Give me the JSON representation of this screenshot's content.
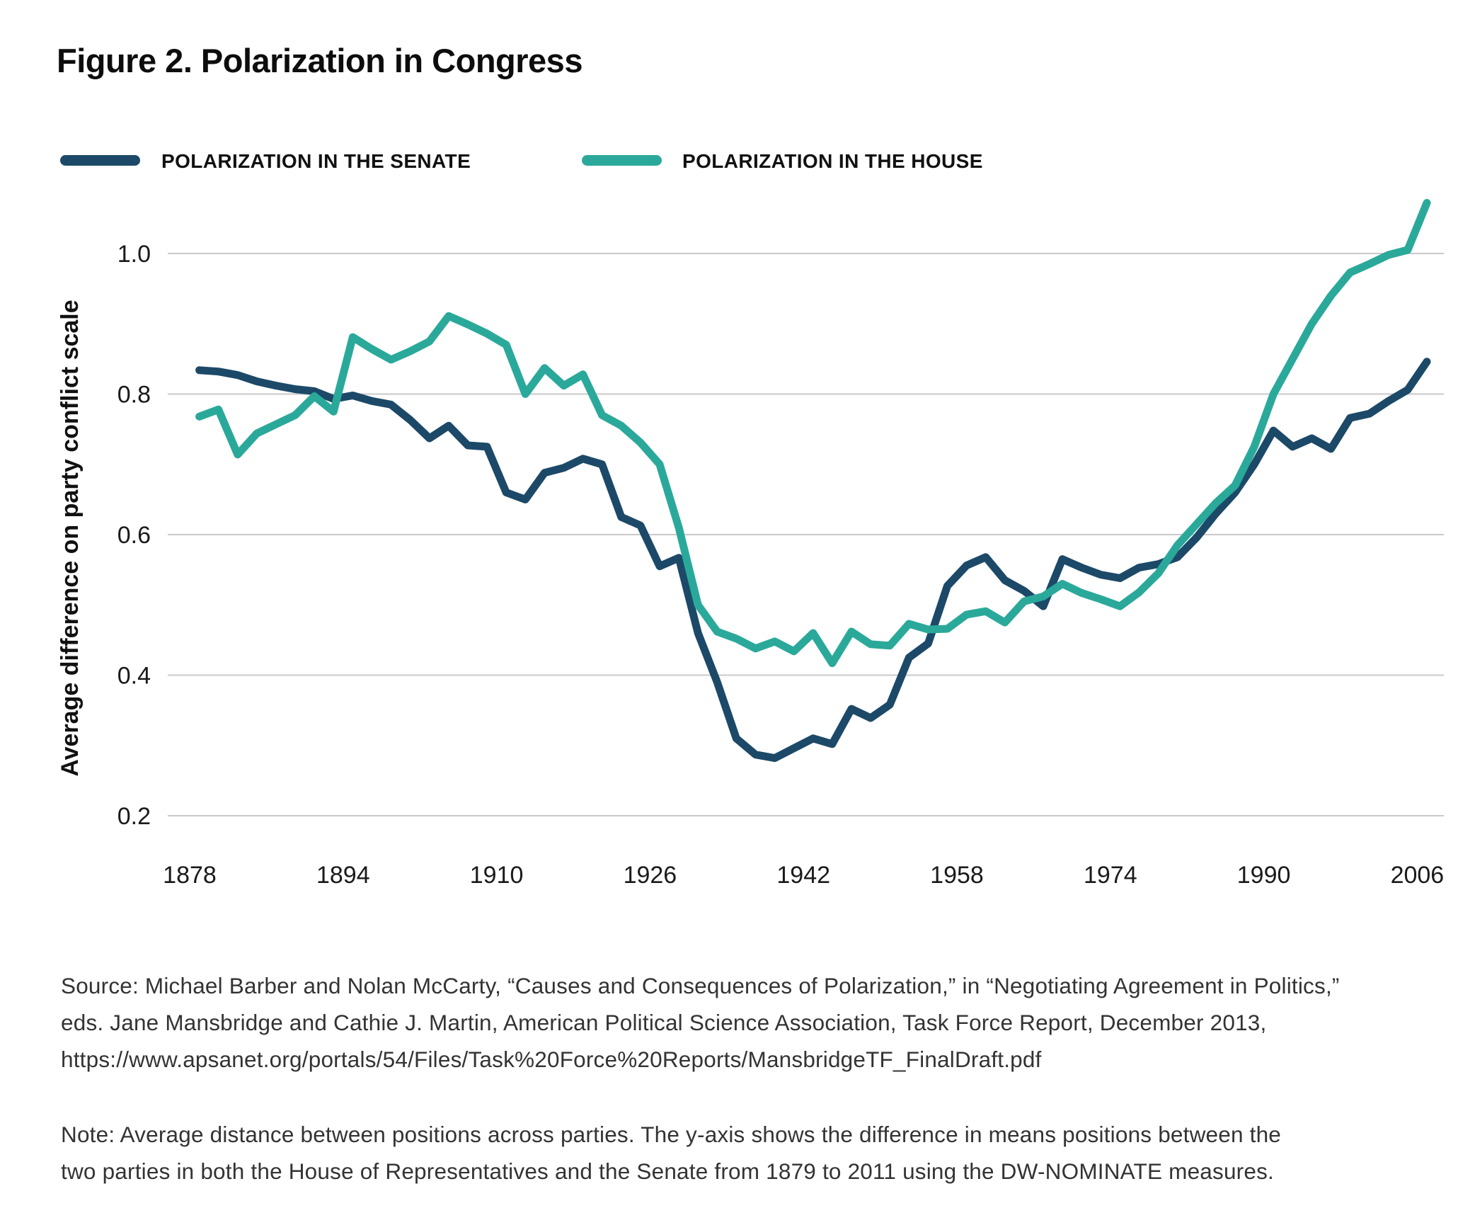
{
  "figure": {
    "title": "Figure 2. Polarization in Congress"
  },
  "legend": {
    "items": [
      {
        "id": "senate",
        "label": "POLARIZATION IN THE SENATE",
        "color": "#1c4968"
      },
      {
        "id": "house",
        "label": "POLARIZATION IN THE HOUSE",
        "color": "#2aa99b"
      }
    ]
  },
  "chart_data": {
    "type": "line",
    "title": "Figure 2. Polarization in Congress",
    "xlabel": "",
    "ylabel": "Average difference on party conflict scale",
    "xlim": [
      1878,
      2008
    ],
    "ylim": [
      0.15,
      1.1
    ],
    "grid": true,
    "legend_position": "top",
    "x_ticks": [
      1878,
      1894,
      1910,
      1926,
      1942,
      1958,
      1974,
      1990,
      2006
    ],
    "y_ticks": [
      {
        "value": 1.0,
        "label": "1.0"
      },
      {
        "value": 0.8,
        "label": "0.8"
      },
      {
        "value": 0.6,
        "label": "0.6"
      },
      {
        "value": 0.4,
        "label": "0.4"
      },
      {
        "value": 0.2,
        "label": "0.2"
      }
    ],
    "x": [
      1879,
      1881,
      1883,
      1885,
      1887,
      1889,
      1891,
      1893,
      1895,
      1897,
      1899,
      1901,
      1903,
      1905,
      1907,
      1909,
      1911,
      1913,
      1915,
      1917,
      1919,
      1921,
      1923,
      1925,
      1927,
      1929,
      1931,
      1933,
      1935,
      1937,
      1939,
      1941,
      1943,
      1945,
      1947,
      1949,
      1951,
      1953,
      1955,
      1957,
      1959,
      1961,
      1963,
      1965,
      1967,
      1969,
      1971,
      1973,
      1975,
      1977,
      1979,
      1981,
      1983,
      1985,
      1987,
      1989,
      1991,
      1993,
      1995,
      1997,
      1999,
      2001,
      2003,
      2005,
      2007
    ],
    "series": [
      {
        "id": "senate",
        "name": "POLARIZATION IN THE SENATE",
        "color": "#1c4968",
        "values": [
          0.834,
          0.832,
          0.827,
          0.818,
          0.812,
          0.807,
          0.804,
          0.793,
          0.798,
          0.79,
          0.785,
          0.763,
          0.737,
          0.755,
          0.727,
          0.725,
          0.66,
          0.65,
          0.688,
          0.695,
          0.708,
          0.7,
          0.625,
          0.613,
          0.555,
          0.567,
          0.46,
          0.39,
          0.31,
          0.287,
          0.282,
          0.296,
          0.31,
          0.302,
          0.352,
          0.339,
          0.358,
          0.425,
          0.445,
          0.527,
          0.556,
          0.568,
          0.535,
          0.52,
          0.498,
          0.565,
          0.553,
          0.543,
          0.538,
          0.553,
          0.558,
          0.568,
          0.596,
          0.63,
          0.66,
          0.7,
          0.748,
          0.725,
          0.737,
          0.722,
          0.766,
          0.772,
          0.79,
          0.806,
          0.846
        ]
      },
      {
        "id": "house",
        "name": "POLARIZATION IN THE HOUSE",
        "color": "#2aa99b",
        "values": [
          0.768,
          0.778,
          0.714,
          0.744,
          0.757,
          0.77,
          0.797,
          0.775,
          0.881,
          0.864,
          0.849,
          0.861,
          0.875,
          0.911,
          0.899,
          0.886,
          0.87,
          0.8,
          0.837,
          0.812,
          0.828,
          0.77,
          0.755,
          0.731,
          0.7,
          0.61,
          0.5,
          0.462,
          0.452,
          0.438,
          0.448,
          0.434,
          0.46,
          0.417,
          0.462,
          0.444,
          0.442,
          0.473,
          0.465,
          0.466,
          0.486,
          0.491,
          0.475,
          0.505,
          0.512,
          0.53,
          0.517,
          0.508,
          0.498,
          0.518,
          0.545,
          0.585,
          0.615,
          0.645,
          0.67,
          0.725,
          0.8,
          0.85,
          0.9,
          0.94,
          0.973,
          0.985,
          0.998,
          1.005,
          1.072
        ]
      }
    ]
  },
  "source": {
    "lines": [
      "Source: Michael Barber and Nolan McCarty, “Causes and Consequences of Polarization,” in “Negotiating Agreement in Politics,”",
      "eds. Jane Mansbridge and Cathie J. Martin, American Political Science Association, Task Force Report, December 2013,",
      "https://www.apsanet.org/portals/54/Files/Task%20Force%20Reports/MansbridgeTF_FinalDraft.pdf"
    ]
  },
  "note": {
    "lines": [
      "Note: Average distance between positions across parties. The y-axis shows the difference in means positions between the",
      "two parties in both the House of Representatives and the Senate from 1879 to 2011 using the DW-NOMINATE measures."
    ]
  },
  "colors": {
    "senate_line": "#1c4968",
    "house_line": "#2aa99b",
    "gridline": "#c9c9c9",
    "text": "#1a1a1a"
  }
}
